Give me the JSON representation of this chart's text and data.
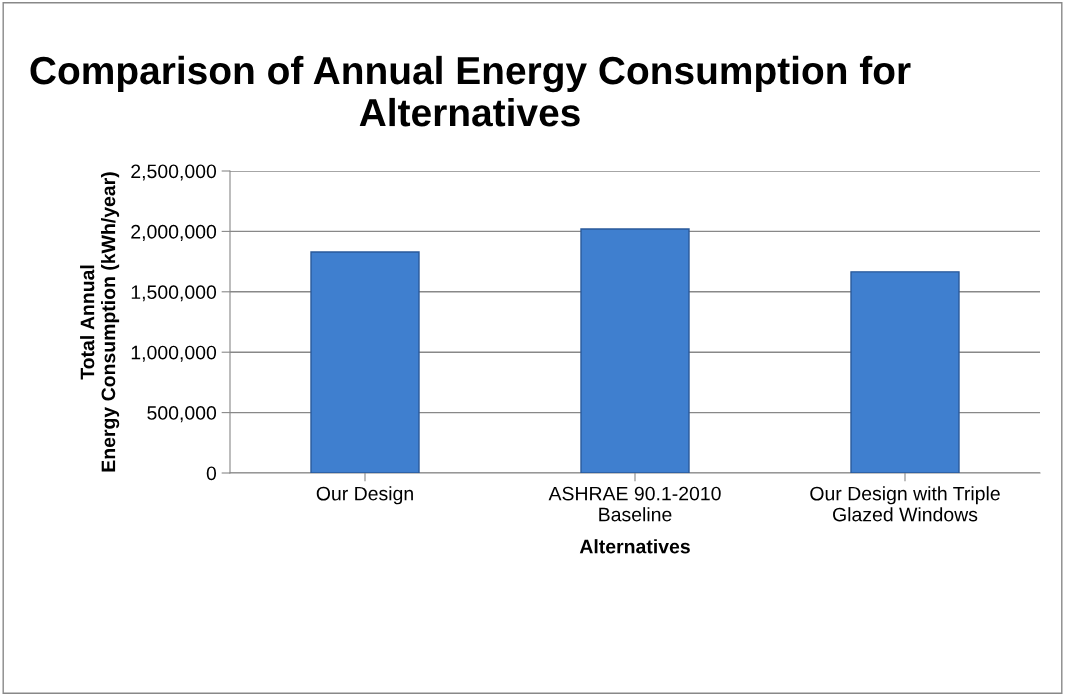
{
  "chart_data": {
    "type": "bar",
    "title": "Comparison of Annual Energy Consumption for Alternatives",
    "xlabel": "Alternatives",
    "ylabel": "Total Annual\nEnergy Consumption (kWh/year)",
    "categories": [
      "Our Design",
      "ASHRAE 90.1-2010\nBaseline",
      "Our Design with Triple\nGlazed Windows"
    ],
    "values": [
      1830000,
      2020000,
      1665000
    ],
    "color": "#3f7fcf",
    "ylim": [
      0,
      2500000
    ],
    "yticks": [
      {
        "value": 0,
        "label": "0"
      },
      {
        "value": 500000,
        "label": "500,000"
      },
      {
        "value": 1000000,
        "label": "1,000,000"
      },
      {
        "value": 1500000,
        "label": "1,500,000"
      },
      {
        "value": 2000000,
        "label": "2,000,000"
      },
      {
        "value": 2500000,
        "label": "2,500,000"
      }
    ],
    "grid": "y",
    "legend": false
  }
}
